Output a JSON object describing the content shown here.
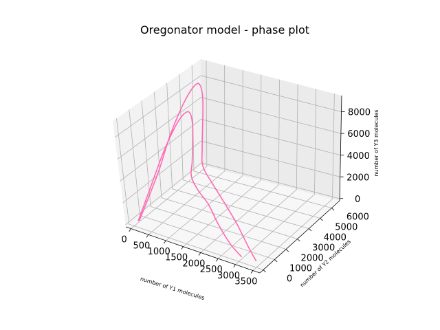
{
  "chart_data": {
    "type": "line",
    "projection": "3d",
    "title": "Oregonator model - phase plot",
    "xlabel": "number of Y1 molecules",
    "ylabel": "number of Y2 molecules",
    "zlabel": "number of Y3 molecules",
    "xticks": [
      "0",
      "500",
      "1000",
      "1500",
      "2000",
      "2500",
      "3000",
      "3500"
    ],
    "yticks": [
      "0",
      "1000",
      "2000",
      "3000",
      "4000",
      "5000",
      "6000"
    ],
    "zticks": [
      "0",
      "2000",
      "4000",
      "6000",
      "8000"
    ],
    "xlim": [
      -150,
      3700
    ],
    "ylim": [
      -300,
      6700
    ],
    "zlim": [
      -200,
      9500
    ],
    "grid": true,
    "series_color": "#ff69b4",
    "series": [
      {
        "x": [
          3400,
          3000,
          2200,
          1400,
          800,
          200,
          30,
          0,
          20,
          80,
          150,
          200,
          180,
          120,
          60
        ],
        "y": [
          300,
          900,
          2300,
          3600,
          4600,
          5700,
          6200,
          6400,
          6100,
          5400,
          4300,
          3000,
          2000,
          1000,
          300
        ],
        "z": [
          0,
          200,
          400,
          600,
          700,
          800,
          2000,
          6000,
          7800,
          8200,
          7500,
          5800,
          3500,
          1500,
          100
        ]
      },
      {
        "x": [
          3000,
          2500,
          1800,
          1200,
          600,
          150,
          30,
          0,
          20,
          60,
          110,
          140,
          120,
          80,
          40
        ],
        "y": [
          250,
          800,
          1900,
          3000,
          3900,
          4800,
          5300,
          5500,
          5200,
          4500,
          3600,
          2500,
          1600,
          800,
          250
        ],
        "z": [
          0,
          150,
          300,
          450,
          550,
          650,
          1500,
          4500,
          6000,
          6300,
          5800,
          4500,
          2800,
          1200,
          80
        ]
      }
    ]
  }
}
